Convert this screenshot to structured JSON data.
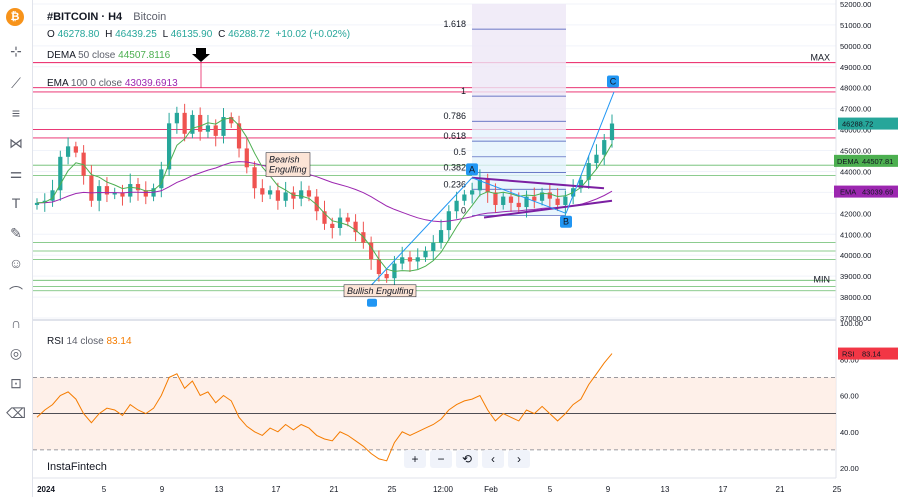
{
  "header": {
    "symbol": "#BITCOIN · H4",
    "name": "Bitcoin",
    "o_label": "O",
    "o_value": "46278.80",
    "h_label": "H",
    "h_value": "46439.25",
    "l_label": "L",
    "l_value": "46135.90",
    "c_label": "C",
    "c_value": "46288.72",
    "change": "+10.02 (+0.02%)"
  },
  "indicators": {
    "dema_label": "DEMA",
    "dema_params": "50 close",
    "dema_value": "44507.8116",
    "ema_label": "EMA",
    "ema_params": "100 0 close",
    "ema_value": "43039.6913",
    "rsi_label": "RSI",
    "rsi_params": "14 close",
    "rsi_value": "83.14"
  },
  "badges": {
    "price": "46288.72",
    "dema": "DEMA",
    "dema_value": "44507.81",
    "ema": "EMA",
    "ema_value": "43039.69",
    "rsi": "RSI",
    "rsi_value": "83.14"
  },
  "annotations": {
    "bearish": "Bearish Engulfing",
    "bullish": "Bullish Engulfing",
    "point_a": "A",
    "point_b": "B",
    "point_c": "C",
    "max": "MAX",
    "min": "MIN"
  },
  "fib": {
    "levels": [
      1.618,
      1,
      0.786,
      0.618,
      0.5,
      0.382,
      0.236,
      0
    ],
    "labels": [
      "1.618",
      "1",
      "0.786",
      "0.618",
      "0.5",
      "0.382",
      "0.236",
      "0"
    ],
    "prices": [
      50800,
      47600,
      46400,
      45450,
      44700,
      43950,
      43150,
      41900
    ]
  },
  "colors": {
    "up": "#26a69a",
    "down": "#ef5350",
    "dema": "#4caf50",
    "ema": "#9c27b0",
    "rsi": "#f57c00",
    "fib": "#3f51b5",
    "level_red": "#e91e63",
    "level_green": "#66bb6a"
  },
  "chart_data": [
    {
      "type": "candlestick",
      "title": "",
      "ylim": [
        37000,
        52000
      ],
      "yticks": [
        "52000.00",
        "51000.00",
        "50000.00",
        "49000.00",
        "48000.00",
        "47000.00",
        "46000.00",
        "45000.00",
        "44000.00",
        "43000.00",
        "42000.00",
        "41000.00",
        "40000.00",
        "39000.00",
        "38000.00",
        "37000.00"
      ],
      "x_labels": [
        "2024",
        "5",
        "9",
        "13",
        "17",
        "21",
        "25",
        "12:00",
        "Feb",
        "5",
        "9",
        "13",
        "17",
        "21",
        "25"
      ],
      "horizontal_levels_red": [
        49200,
        48000,
        47800,
        46000,
        45600
      ],
      "horizontal_levels_green": [
        44300,
        43800,
        40600,
        40200,
        39800,
        38800,
        38500,
        38300
      ],
      "max_level": 49200,
      "min_level": 38600,
      "close_path": [
        42500,
        42600,
        43100,
        44700,
        45200,
        44900,
        43800,
        42600,
        43300,
        42900,
        43000,
        42800,
        43400,
        43100,
        42800,
        43200,
        44100,
        46300,
        46800,
        45800,
        46700,
        45900,
        46200,
        45700,
        46600,
        46300,
        45100,
        44200,
        43200,
        42900,
        43100,
        42600,
        43000,
        42700,
        43100,
        42800,
        42100,
        41500,
        41300,
        41800,
        41600,
        41100,
        40600,
        39800,
        39100,
        38900,
        39600,
        39900,
        39700,
        39900,
        40200,
        40600,
        41200,
        42100,
        42600,
        42900,
        43100,
        43600,
        43000,
        42400,
        42800,
        42500,
        42300,
        42800,
        42600,
        43000,
        42700,
        42400,
        42800,
        43200,
        43600,
        44400,
        44800,
        45500,
        46290
      ]
    },
    {
      "type": "line",
      "title": "RSI",
      "ylim": [
        20,
        100
      ],
      "yticks": [
        "100.00",
        "80.00",
        "60.00",
        "40.00",
        "20.00"
      ],
      "bands": [
        70,
        30
      ],
      "midline": 50,
      "values": [
        48,
        52,
        55,
        60,
        62,
        58,
        50,
        45,
        50,
        53,
        52,
        49,
        55,
        52,
        50,
        53,
        60,
        70,
        72,
        64,
        68,
        60,
        62,
        56,
        60,
        57,
        48,
        43,
        40,
        38,
        42,
        40,
        44,
        41,
        44,
        42,
        38,
        36,
        35,
        40,
        38,
        35,
        32,
        28,
        25,
        24,
        34,
        40,
        38,
        40,
        42,
        44,
        47,
        52,
        55,
        57,
        58,
        60,
        52,
        46,
        50,
        48,
        46,
        52,
        50,
        54,
        50,
        46,
        50,
        55,
        58,
        66,
        72,
        78,
        83.14
      ]
    }
  ]
}
